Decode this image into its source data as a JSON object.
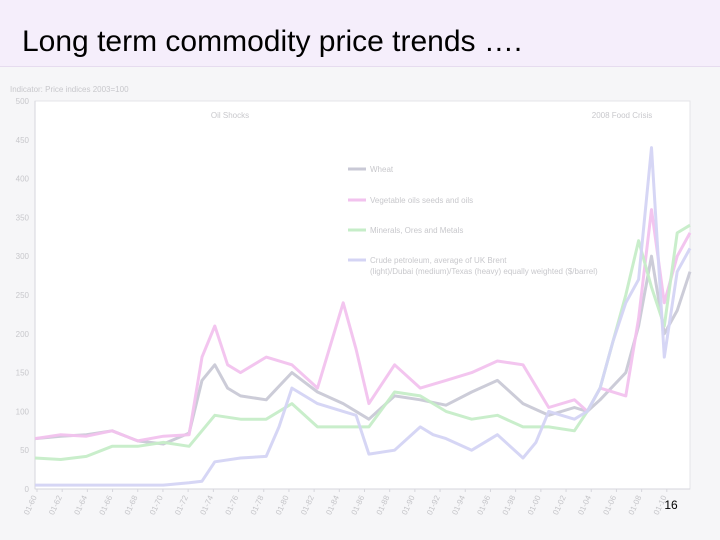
{
  "slide": {
    "title": "Long term commodity price trends ….",
    "page_number": "16"
  },
  "chart_data": {
    "type": "line",
    "title": "",
    "ylabel": "Indicator: Price indices 2003=100",
    "xlabel": "",
    "ylim": [
      0,
      500
    ],
    "yticks": [
      0,
      50,
      100,
      150,
      200,
      250,
      300,
      350,
      400,
      450,
      500
    ],
    "x_tick_labels": [
      "01-60",
      "01-62",
      "01-64",
      "01-66",
      "01-68",
      "01-70",
      "01-72",
      "01-74",
      "01-76",
      "01-78",
      "01-80",
      "01-82",
      "01-84",
      "01-86",
      "01-88",
      "01-90",
      "01-92",
      "01-94",
      "01-96",
      "01-98",
      "01-00",
      "01-02",
      "01-04",
      "01-06",
      "01-08",
      "01-10"
    ],
    "x_range": [
      1960,
      2011
    ],
    "grid": false,
    "legend_position": "top-center",
    "annotations": [
      "Oil Shocks",
      "2008 Food Crisis"
    ],
    "series": [
      {
        "name": "Wheat",
        "color": "#c9c9d6",
        "x": [
          1960,
          1962,
          1964,
          1966,
          1968,
          1970,
          1972,
          1973,
          1974,
          1975,
          1976,
          1978,
          1980,
          1982,
          1984,
          1986,
          1988,
          1990,
          1992,
          1994,
          1996,
          1998,
          2000,
          2002,
          2003,
          2004,
          2006,
          2007,
          2008,
          2009,
          2010,
          2011
        ],
        "y": [
          65,
          68,
          70,
          75,
          62,
          58,
          72,
          140,
          160,
          130,
          120,
          115,
          150,
          125,
          110,
          90,
          120,
          115,
          108,
          125,
          140,
          110,
          95,
          105,
          100,
          115,
          150,
          210,
          300,
          200,
          230,
          280
        ]
      },
      {
        "name": "Vegetable oils seeds and oils",
        "color": "#f2c2ee",
        "x": [
          1960,
          1962,
          1964,
          1966,
          1968,
          1970,
          1972,
          1973,
          1974,
          1975,
          1976,
          1978,
          1980,
          1982,
          1984,
          1985,
          1986,
          1988,
          1990,
          1992,
          1994,
          1996,
          1998,
          2000,
          2002,
          2003,
          2004,
          2006,
          2007,
          2008,
          2009,
          2010,
          2011
        ],
        "y": [
          65,
          70,
          68,
          75,
          62,
          68,
          70,
          170,
          210,
          160,
          150,
          170,
          160,
          130,
          240,
          180,
          110,
          160,
          130,
          140,
          150,
          165,
          160,
          105,
          115,
          100,
          130,
          120,
          220,
          360,
          240,
          300,
          330
        ]
      },
      {
        "name": "Minerals, Ores and Metals",
        "color": "#c6edc8",
        "x": [
          1960,
          1962,
          1964,
          1966,
          1968,
          1970,
          1972,
          1974,
          1976,
          1978,
          1980,
          1982,
          1984,
          1986,
          1988,
          1990,
          1992,
          1994,
          1996,
          1998,
          2000,
          2002,
          2003,
          2004,
          2006,
          2007,
          2008,
          2009,
          2010,
          2011
        ],
        "y": [
          40,
          38,
          42,
          55,
          55,
          60,
          55,
          95,
          90,
          90,
          110,
          80,
          80,
          80,
          125,
          120,
          100,
          90,
          95,
          80,
          80,
          75,
          100,
          130,
          250,
          320,
          260,
          210,
          330,
          340
        ]
      },
      {
        "name": "Crude petroleum, average of UK Brent (light)/Dubai (medium)/Texas (heavy) equally weighted ($/barrel)",
        "color": "#d4d4f4",
        "x": [
          1960,
          1962,
          1964,
          1966,
          1968,
          1970,
          1972,
          1973,
          1974,
          1976,
          1978,
          1979,
          1980,
          1981,
          1982,
          1984,
          1985,
          1986,
          1988,
          1990,
          1991,
          1992,
          1994,
          1996,
          1998,
          1999,
          2000,
          2002,
          2003,
          2004,
          2005,
          2006,
          2007,
          2008,
          2009,
          2010,
          2011
        ],
        "y": [
          5,
          5,
          5,
          5,
          5,
          5,
          8,
          10,
          35,
          40,
          42,
          80,
          130,
          120,
          110,
          100,
          95,
          45,
          50,
          80,
          70,
          65,
          50,
          70,
          40,
          60,
          100,
          90,
          100,
          130,
          190,
          240,
          270,
          440,
          170,
          280,
          310
        ]
      }
    ]
  }
}
